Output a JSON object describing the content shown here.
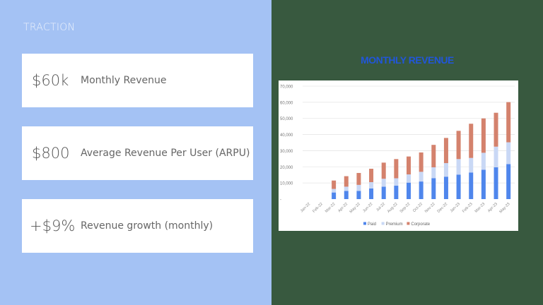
{
  "left": {
    "section_title": "TRACTION",
    "metrics": [
      {
        "value": "$60k",
        "label": "Monthly Revenue"
      },
      {
        "value": "$800",
        "label": "Average Revenue Per User (ARPU)"
      },
      {
        "value": "+$9%",
        "label": "Revenue growth (monthly)"
      }
    ]
  },
  "right": {
    "chart_title": "MONTHLY REVENUE"
  },
  "colors": {
    "left_bg": "#a4c2f4",
    "right_bg": "#38593f",
    "title_blue": "#2156d9",
    "paid": "#4f86ec",
    "premium": "#c9d8f5",
    "corporate": "#d4826d"
  },
  "chart_data": {
    "type": "bar",
    "stacked": true,
    "title": "MONTHLY REVENUE",
    "xlabel": "",
    "ylabel": "",
    "ylim": [
      0,
      70000
    ],
    "yticks": [
      "-",
      "10,000",
      "20,000",
      "30,000",
      "40,000",
      "50,000",
      "60,000",
      "70,000"
    ],
    "grid": true,
    "legend_position": "bottom",
    "categories": [
      "Jan-22",
      "Feb-22",
      "Mar-22",
      "Apr-22",
      "May-22",
      "Jun-22",
      "Jul-22",
      "Aug-22",
      "Sep-22",
      "Oct-22",
      "Nov-22",
      "Dec-22",
      "Jan-23",
      "Feb-23",
      "Mar-23",
      "Apr-23",
      "May-23"
    ],
    "series": [
      {
        "name": "Paid",
        "color": "#4f86ec",
        "values": [
          0,
          0,
          4100,
          5100,
          5100,
          6600,
          7700,
          8300,
          10200,
          10900,
          13000,
          13900,
          15200,
          16500,
          18200,
          19700,
          21700
        ]
      },
      {
        "name": "Premium",
        "color": "#c9d8f5",
        "values": [
          0,
          0,
          2200,
          2600,
          3700,
          3900,
          4900,
          4600,
          5100,
          6000,
          6700,
          8400,
          9600,
          9000,
          10500,
          12800,
          13500
        ]
      },
      {
        "name": "Corporate",
        "color": "#d4826d",
        "values": [
          0,
          0,
          5200,
          6500,
          7400,
          8300,
          10000,
          11900,
          11100,
          12000,
          13900,
          15600,
          17500,
          21200,
          21300,
          21000,
          24900
        ]
      }
    ],
    "totals": [
      0,
      0,
      11500,
      14200,
      16200,
      18800,
      22600,
      24800,
      26400,
      28900,
      33600,
      37900,
      42300,
      46700,
      50000,
      53500,
      60100
    ]
  }
}
